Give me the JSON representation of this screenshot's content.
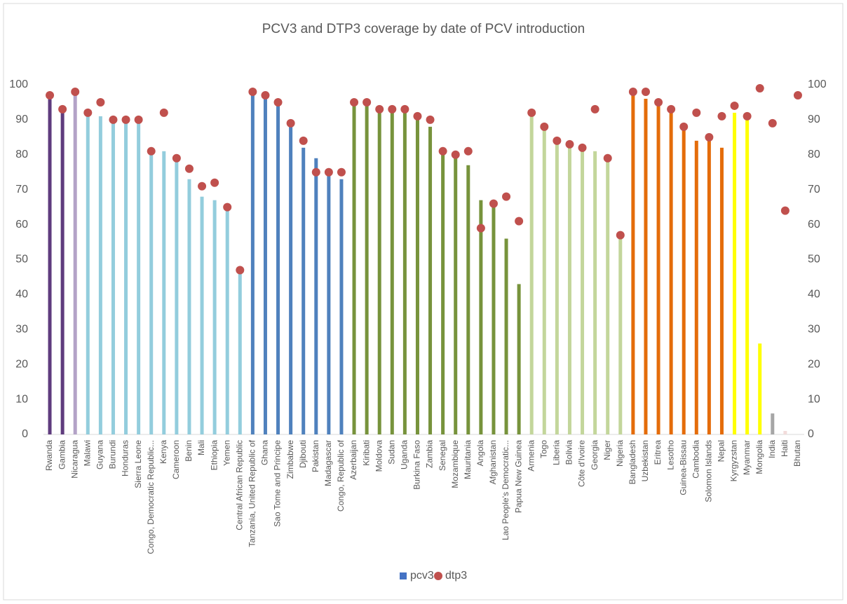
{
  "chart_data": {
    "type": "bar",
    "title": "PCV3 and DTP3 coverage by date of PCV introduction",
    "categories": [
      "Rwanda",
      "Gambia",
      "Nicaragua",
      "Malawi",
      "Guyana",
      "Burundi",
      "Honduras",
      "Sierra Leone",
      "Congo, Democratic Republic...",
      "Kenya",
      "Cameroon",
      "Benin",
      "Mali",
      "Ethiopia",
      "Yemen",
      "Central African Republic",
      "Tanzania, United Republic of",
      "Ghana",
      "Sao Tome and Principe",
      "Zimbabwe",
      "Djibouti",
      "Pakistan",
      "Madagascar",
      "Congo, Republic of",
      "Azerbaijan",
      "Kiribati",
      "Moldova",
      "Sudan",
      "Uganda",
      "Burkina Faso",
      "Zambia",
      "Senegal",
      "Mozambique",
      "Mauritania",
      "Angola",
      "Afghanistan",
      "Lao People's Democratic...",
      "Papua New Guinea",
      "Armenia",
      "Togo",
      "Liberia",
      "Bolivia",
      "Côte d'Ivoire",
      "Georgia",
      "Niger",
      "Nigeria",
      "Bangladesh",
      "Uzbekistan",
      "Eritrea",
      "Lesotho",
      "Guinea-Bissau",
      "Cambodia",
      "Solomon Islands",
      "Nepal",
      "Kyrgyzstan",
      "Myanmar",
      "Mongolia",
      "India",
      "Haiti",
      "Bhutan"
    ],
    "series": [
      {
        "name": "pcv3",
        "color": "#4472c4",
        "values": [
          96,
          92,
          98,
          91,
          91,
          90,
          89,
          89,
          80,
          81,
          78,
          73,
          68,
          67,
          64,
          47,
          98,
          96,
          94,
          88,
          82,
          79,
          74,
          73,
          94,
          94,
          92,
          92,
          92,
          90,
          88,
          80,
          79,
          77,
          67,
          65,
          56,
          43,
          91,
          87,
          83,
          82,
          81,
          81,
          78,
          56,
          98,
          96,
          94,
          92,
          87,
          84,
          84,
          82,
          92,
          90,
          26,
          6,
          1,
          null
        ],
        "bar_colors": [
          "#5f3c7e",
          "#5f3c7e",
          "#b3a2c7",
          "#93cddd",
          "#93cddd",
          "#93cddd",
          "#93cddd",
          "#93cddd",
          "#93cddd",
          "#93cddd",
          "#93cddd",
          "#93cddd",
          "#93cddd",
          "#93cddd",
          "#93cddd",
          "#93cddd",
          "#4f81bd",
          "#4f81bd",
          "#4f81bd",
          "#4f81bd",
          "#4f81bd",
          "#4f81bd",
          "#4f81bd",
          "#4f81bd",
          "#77933c",
          "#77933c",
          "#77933c",
          "#77933c",
          "#77933c",
          "#77933c",
          "#77933c",
          "#77933c",
          "#77933c",
          "#77933c",
          "#77933c",
          "#77933c",
          "#77933c",
          "#77933c",
          "#c3d69b",
          "#c3d69b",
          "#c3d69b",
          "#c3d69b",
          "#c3d69b",
          "#c3d69b",
          "#c3d69b",
          "#c3d69b",
          "#e46c0a",
          "#e46c0a",
          "#e46c0a",
          "#e46c0a",
          "#e46c0a",
          "#e46c0a",
          "#e46c0a",
          "#e46c0a",
          "#ffff00",
          "#ffff00",
          "#ffff00",
          "#a6a6a6",
          "#f2dcdb",
          "#f2dcdb"
        ]
      },
      {
        "name": "dtp3",
        "color": "#c0504d",
        "values": [
          97,
          93,
          98,
          92,
          95,
          90,
          90,
          90,
          81,
          92,
          79,
          76,
          71,
          72,
          65,
          47,
          98,
          97,
          95,
          89,
          84,
          75,
          75,
          75,
          95,
          95,
          93,
          93,
          93,
          91,
          90,
          81,
          80,
          81,
          59,
          66,
          68,
          61,
          92,
          88,
          84,
          83,
          82,
          93,
          79,
          57,
          98,
          98,
          95,
          93,
          88,
          92,
          85,
          91,
          94,
          91,
          99,
          89,
          64,
          97
        ]
      }
    ],
    "ylim": [
      0,
      100
    ],
    "yticks": [
      0,
      10,
      20,
      30,
      40,
      50,
      60,
      70,
      80,
      90,
      100
    ],
    "y2lim": [
      0,
      100
    ],
    "y2ticks": [
      0,
      10,
      20,
      30,
      40,
      50,
      60,
      70,
      80,
      90,
      100
    ],
    "legend": "bottom"
  }
}
